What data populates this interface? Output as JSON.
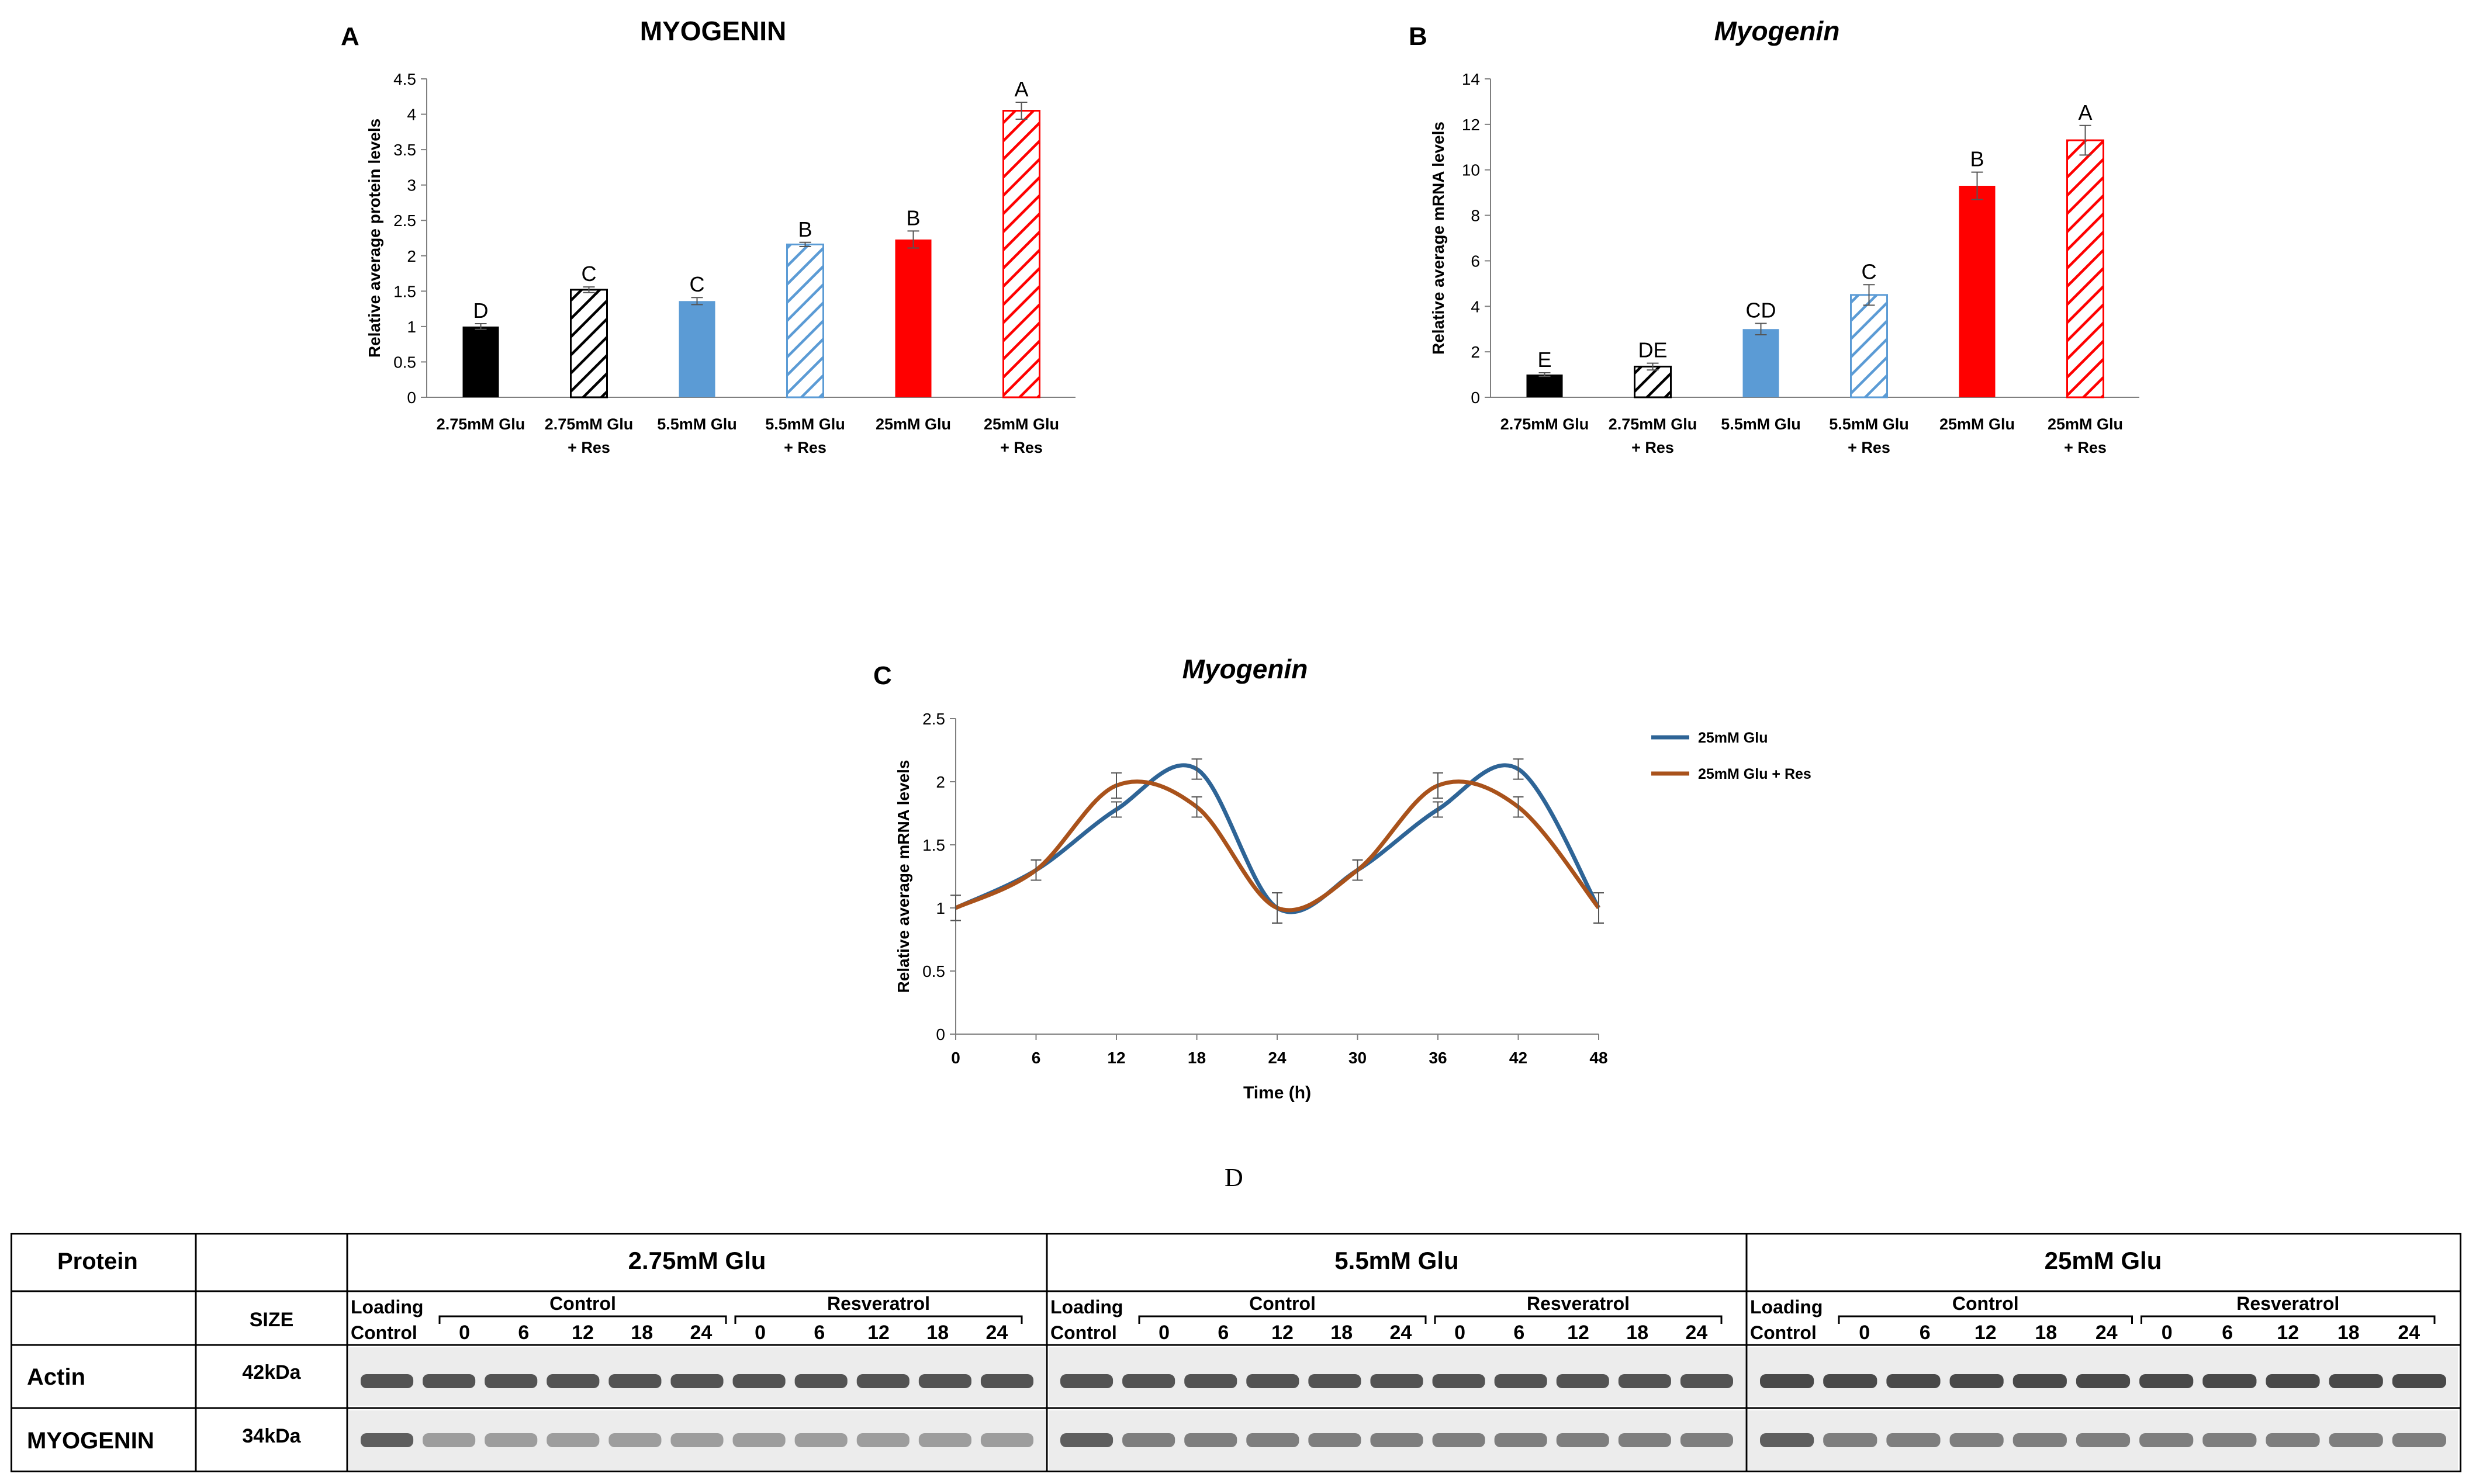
{
  "chart_data": [
    {
      "panel": "A",
      "type": "bar",
      "title": "MYOGENIN",
      "ylabel": "Relative average protein levels",
      "xlabel": "",
      "ylim": [
        0,
        4.5
      ],
      "yticks": [
        "0",
        "0.5",
        "1",
        "1.5",
        "2",
        "2.5",
        "3",
        "3.5",
        "4",
        "4.5"
      ],
      "categories": [
        [
          "2.75mM Glu",
          ""
        ],
        [
          "2.75mM Glu",
          "+ Res"
        ],
        [
          "5.5mM Glu",
          ""
        ],
        [
          "5.5mM Glu",
          "+ Res"
        ],
        [
          "25mM Glu",
          ""
        ],
        [
          "25mM Glu",
          "+ Res"
        ]
      ],
      "values": [
        1.0,
        1.52,
        1.36,
        2.16,
        2.23,
        4.05
      ],
      "errors": [
        0.04,
        0.04,
        0.05,
        0.03,
        0.12,
        0.12
      ],
      "sig_letters": [
        "D",
        "C",
        "C",
        "B",
        "B",
        "A"
      ],
      "colors": [
        "#000000",
        "#000000",
        "#5b9bd5",
        "#5b9bd5",
        "#ff0000",
        "#ff0000"
      ],
      "hatched": [
        false,
        true,
        false,
        true,
        false,
        true
      ]
    },
    {
      "panel": "B",
      "type": "bar",
      "title": "Myogenin",
      "ylabel": "Relative average mRNA levels",
      "xlabel": "",
      "ylim": [
        0,
        14
      ],
      "yticks": [
        "0",
        "2",
        "4",
        "6",
        "8",
        "10",
        "12",
        "14"
      ],
      "categories": [
        [
          "2.75mM Glu",
          ""
        ],
        [
          "2.75mM Glu",
          "+ Res"
        ],
        [
          "5.5mM Glu",
          ""
        ],
        [
          "5.5mM Glu",
          "+ Res"
        ],
        [
          "25mM Glu",
          ""
        ],
        [
          "25mM Glu",
          "+ Res"
        ]
      ],
      "values": [
        1.0,
        1.35,
        3.0,
        4.5,
        9.3,
        11.3
      ],
      "errors": [
        0.08,
        0.15,
        0.25,
        0.45,
        0.6,
        0.65
      ],
      "sig_letters": [
        "E",
        "DE",
        "CD",
        "C",
        "B",
        "A"
      ],
      "colors": [
        "#000000",
        "#000000",
        "#5b9bd5",
        "#5b9bd5",
        "#ff0000",
        "#ff0000"
      ],
      "hatched": [
        false,
        true,
        false,
        true,
        false,
        true
      ]
    },
    {
      "panel": "C",
      "type": "line",
      "title": "Myogenin",
      "xlabel": "Time (h)",
      "ylabel": "Relative average mRNA levels",
      "ylim": [
        0,
        2.5
      ],
      "xlim": [
        0,
        48
      ],
      "xticks": [
        "0",
        "6",
        "12",
        "18",
        "24",
        "30",
        "36",
        "42",
        "48"
      ],
      "yticks": [
        "0",
        "0.5",
        "1",
        "1.5",
        "2",
        "2.5"
      ],
      "x": [
        0,
        6,
        12,
        18,
        24,
        30,
        36,
        42,
        48
      ],
      "legend": "right",
      "series": [
        {
          "name": "25mM Glu",
          "color": "#2e6496",
          "values": [
            1.0,
            1.3,
            1.78,
            2.1,
            1.0,
            1.3,
            1.78,
            2.1,
            1.0
          ],
          "errors": [
            0.1,
            0.08,
            0.06,
            0.08,
            0.12,
            0.08,
            0.06,
            0.08,
            0.12
          ]
        },
        {
          "name": "25mM Glu + Res",
          "color": "#a9521b",
          "values": [
            1.0,
            1.3,
            1.97,
            1.8,
            1.0,
            1.3,
            1.97,
            1.8,
            1.0
          ],
          "errors": [
            0.1,
            0.08,
            0.1,
            0.08,
            0.12,
            0.08,
            0.1,
            0.08,
            0.12
          ]
        }
      ]
    }
  ],
  "panels": {
    "A": "A",
    "B": "B",
    "C": "C",
    "D": "D"
  },
  "blot": {
    "header_protein": "Protein",
    "size_label": "SIZE",
    "groups": [
      "2.75mM Glu",
      "5.5mM Glu",
      "25mM Glu"
    ],
    "loading_label": [
      "Loading",
      "Control"
    ],
    "subgroups": [
      "Control",
      "Resveratrol"
    ],
    "timepoints": [
      "0",
      "6",
      "12",
      "18",
      "24"
    ],
    "rows": [
      {
        "name": "Actin",
        "size": "42kDa"
      },
      {
        "name": "MYOGENIN",
        "size": "34kDa"
      }
    ]
  }
}
